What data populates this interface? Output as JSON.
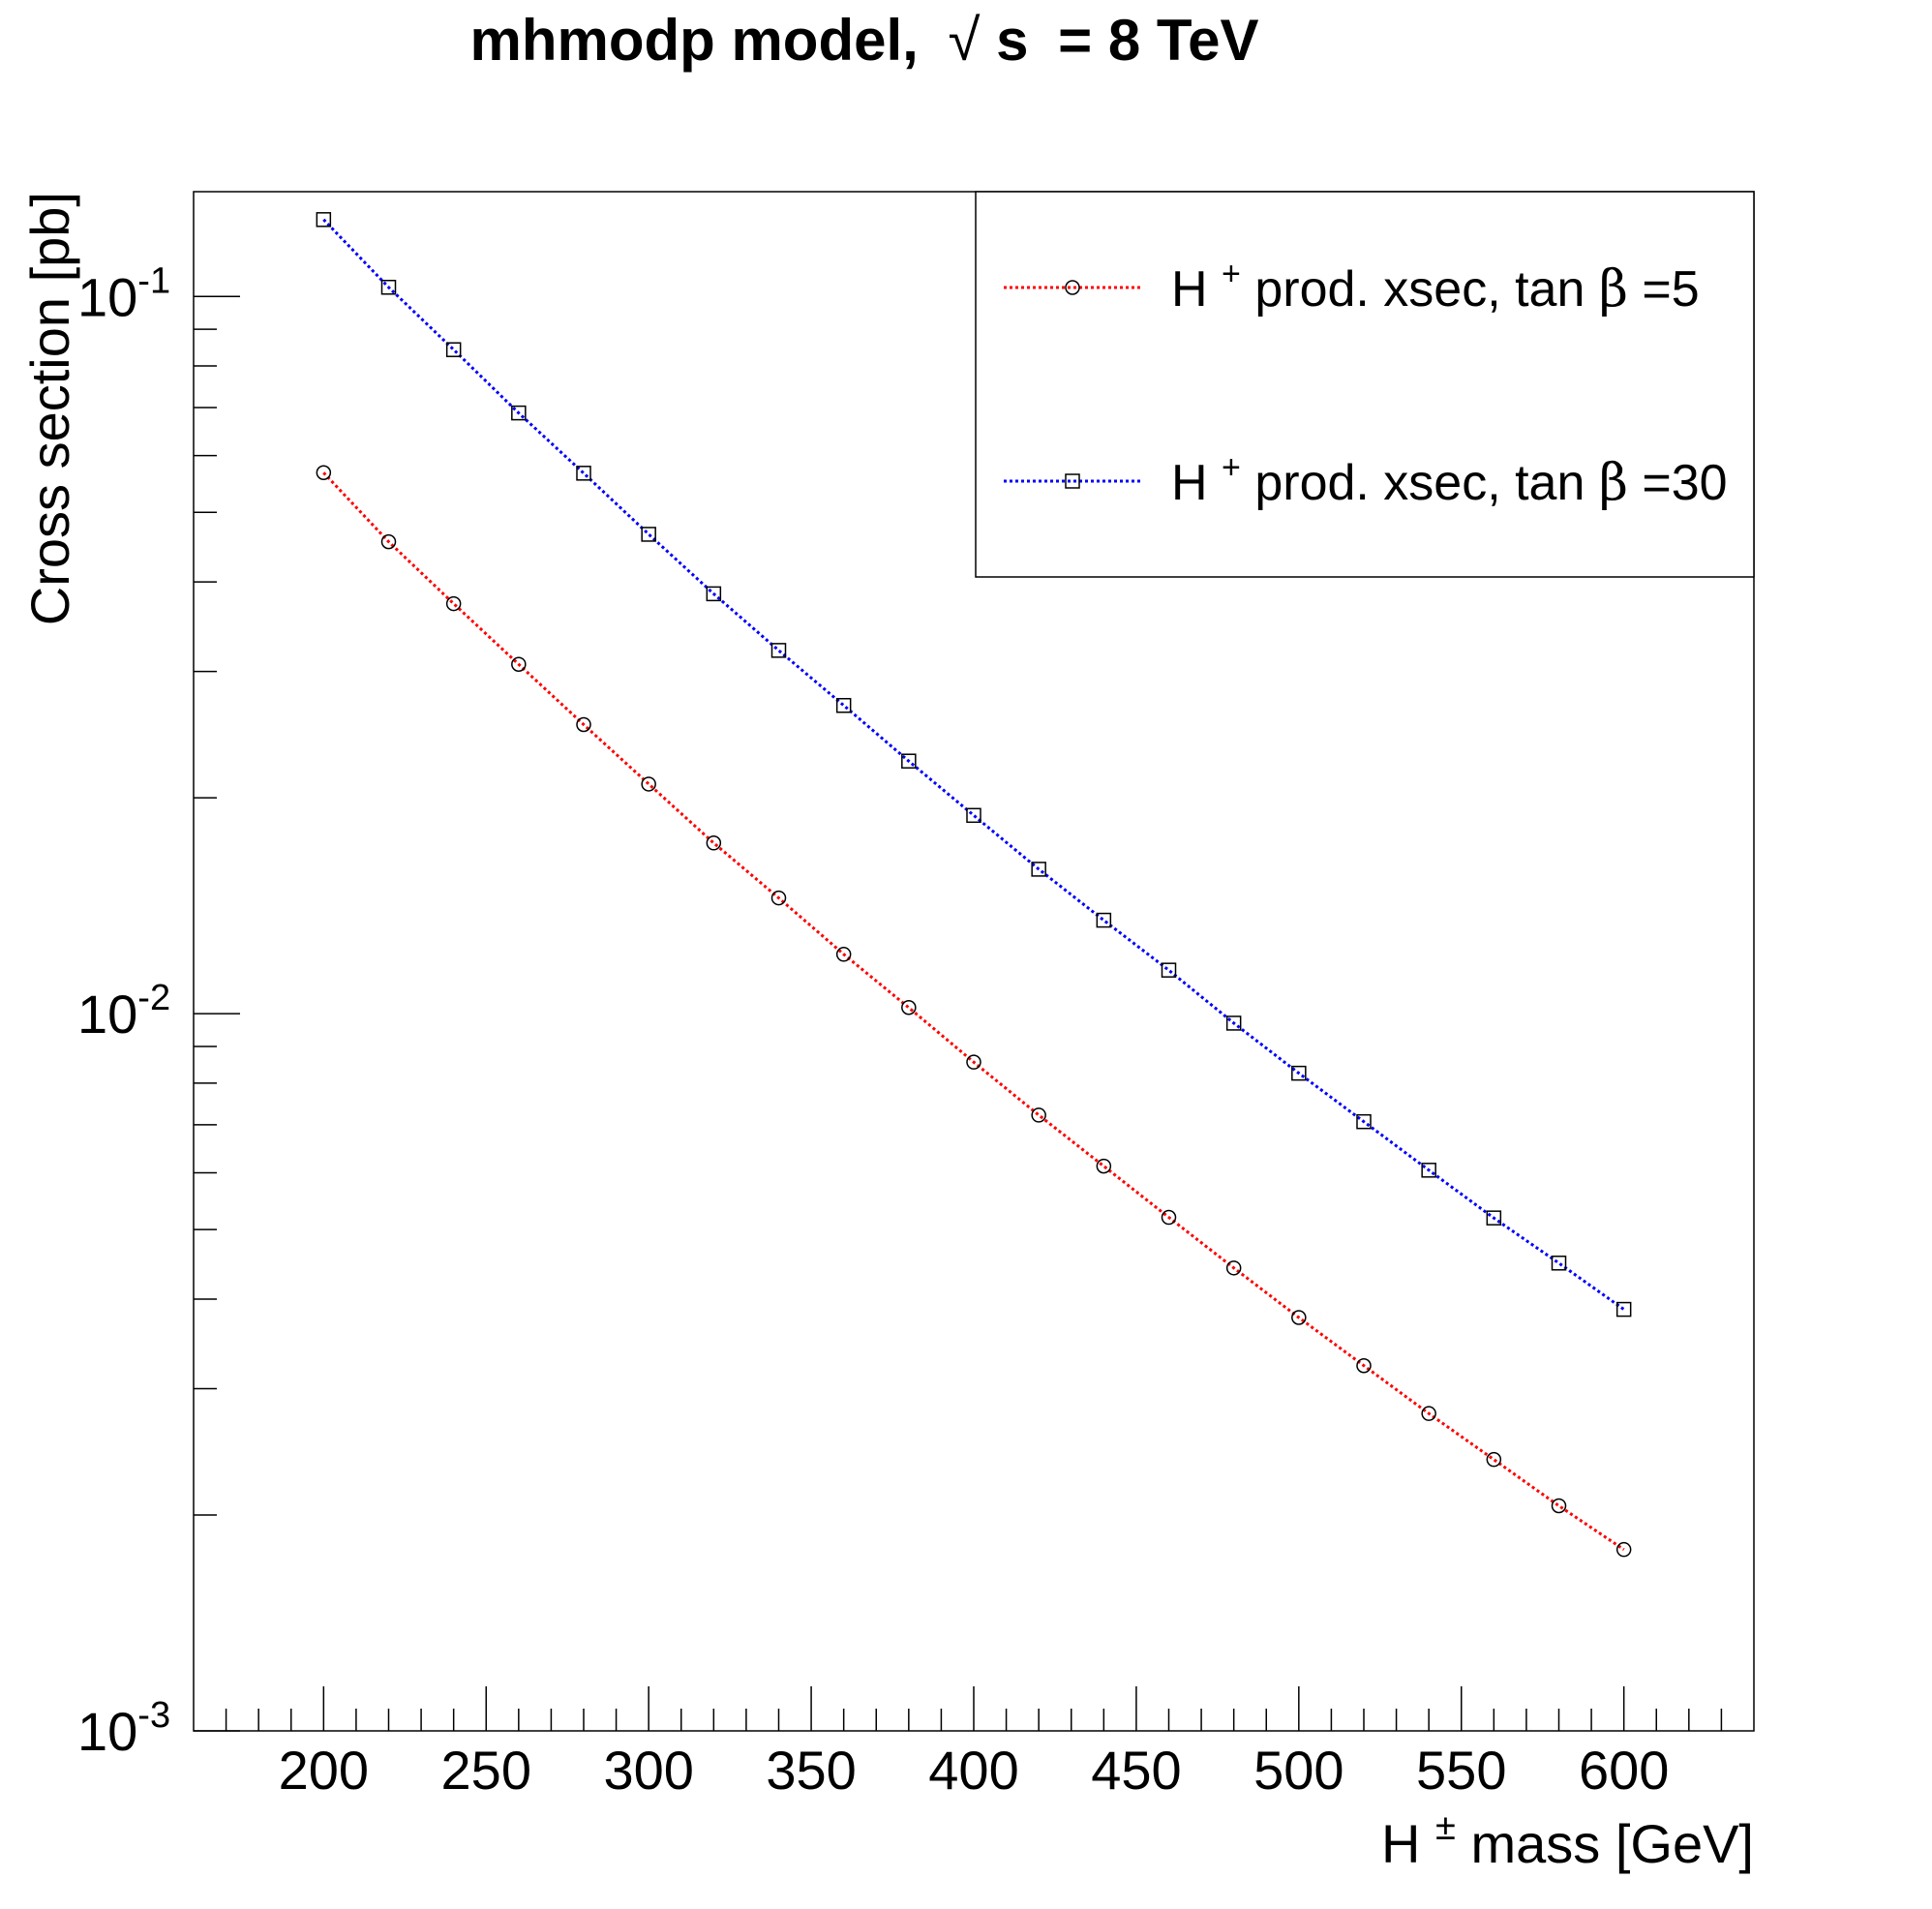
{
  "chart_data": {
    "type": "line",
    "title": {
      "prefix": "mhmodp model,",
      "radical": "√",
      "radicand": "s",
      "suffix": "= 8 TeV"
    },
    "xlabel": {
      "main": "H",
      "sup": "±",
      "rest": " mass [GeV]"
    },
    "ylabel": "Cross section [pb]",
    "xlim": [
      160,
      640
    ],
    "ylim": [
      0.001,
      0.14
    ],
    "yscale": "log",
    "grid": false,
    "legend_position": "top-right",
    "x_ticks": [
      "200",
      "250",
      "300",
      "350",
      "400",
      "450",
      "500",
      "550",
      "600"
    ],
    "y_ticks": [
      {
        "base": "10",
        "exp": "-3"
      },
      {
        "base": "10",
        "exp": "-2"
      },
      {
        "base": "10",
        "exp": "-1"
      }
    ],
    "x": [
      200,
      220,
      240,
      260,
      280,
      300,
      320,
      340,
      360,
      380,
      400,
      420,
      440,
      460,
      480,
      500,
      520,
      540,
      560,
      580,
      600
    ],
    "series": [
      {
        "legend": {
          "main": "H",
          "sup": "+",
          "rest": " prod. xsec, tan",
          "greek": "β",
          "end": "=5"
        },
        "color": "#ff0000",
        "marker": "circle",
        "values": [
          0.0568,
          0.0455,
          0.0373,
          0.0307,
          0.0253,
          0.0209,
          0.0173,
          0.0145,
          0.0121,
          0.0102,
          0.00856,
          0.00722,
          0.00613,
          0.0052,
          0.00442,
          0.00377,
          0.00323,
          0.00277,
          0.00239,
          0.00206,
          0.00179
        ]
      },
      {
        "legend": {
          "main": "H",
          "sup": "+",
          "rest": " prod. xsec, tan",
          "greek": "β",
          "end": "=30"
        },
        "color": "#0000ff",
        "marker": "square",
        "values": [
          0.128,
          0.103,
          0.0843,
          0.0688,
          0.0567,
          0.0466,
          0.0385,
          0.0321,
          0.0269,
          0.0225,
          0.0189,
          0.0159,
          0.0135,
          0.0115,
          0.0097,
          0.00826,
          0.00707,
          0.00605,
          0.00519,
          0.00449,
          0.00387
        ]
      }
    ]
  }
}
